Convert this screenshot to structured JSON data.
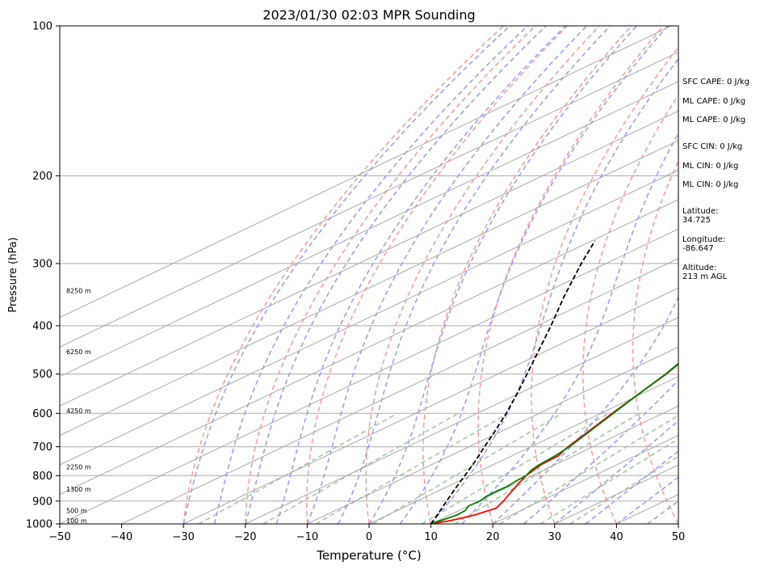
{
  "chart_data": {
    "type": "line",
    "subtype": "skew-T log-P sounding",
    "title": "2023/01/30 02:03 MPR Sounding",
    "xlabel": "Temperature (°C)",
    "ylabel": "Pressure (hPa)",
    "x_range": [
      -50,
      50
    ],
    "y_range": [
      1000,
      100
    ],
    "y_scale": "log",
    "x_ticks": [
      -50,
      -40,
      -30,
      -20,
      -10,
      0,
      10,
      20,
      30,
      40,
      50
    ],
    "x_tick_labels": [
      "−50",
      "−40",
      "−30",
      "−20",
      "−10",
      "0",
      "10",
      "20",
      "30",
      "40",
      "50"
    ],
    "y_ticks": [
      1000,
      900,
      800,
      700,
      600,
      500,
      400,
      300,
      200,
      100
    ],
    "y_tick_labels": [
      "1000",
      "900",
      "800",
      "700",
      "600",
      "500",
      "400",
      "300",
      "200",
      "100"
    ],
    "grid": true,
    "colors": {
      "temperature": "#ff0000",
      "dewpoint": "#008000",
      "parcel": "#000000",
      "isotherms": "#aaaaaa",
      "dry_adiabats": "#ff9999",
      "moist_adiabats": "#9999ff",
      "mixing_ratio": "#99cc99",
      "height_labels": "#000000"
    },
    "series": [
      {
        "name": "Temperature",
        "style": "solid",
        "points": [
          [
            1000,
            10.0
          ],
          [
            985,
            12.0
          ],
          [
            960,
            14.0
          ],
          [
            930,
            15.2
          ],
          [
            900,
            14.0
          ],
          [
            870,
            12.5
          ],
          [
            840,
            11.0
          ],
          [
            800,
            9.0
          ],
          [
            760,
            7.7
          ],
          [
            730,
            7.5
          ],
          [
            700,
            6.0
          ],
          [
            650,
            4.0
          ],
          [
            600,
            1.8
          ],
          [
            550,
            -0.4
          ],
          [
            500,
            -2.8
          ],
          [
            460,
            -5.3
          ],
          [
            430,
            -7.5
          ],
          [
            400,
            -10.4
          ],
          [
            370,
            -13.2
          ],
          [
            350,
            -15.2
          ],
          [
            330,
            -17.5
          ],
          [
            300,
            -21.5
          ],
          [
            280,
            -24.6
          ],
          [
            270,
            -26.8
          ]
        ]
      },
      {
        "name": "Dewpoint",
        "style": "solid",
        "points": [
          [
            1000,
            9.8
          ],
          [
            980,
            10.6
          ],
          [
            960,
            11.2
          ],
          [
            940,
            11.0
          ],
          [
            920,
            10.0
          ],
          [
            900,
            10.2
          ],
          [
            880,
            9.6
          ],
          [
            860,
            9.5
          ],
          [
            840,
            9.6
          ],
          [
            820,
            9.2
          ],
          [
            800,
            9.0
          ],
          [
            780,
            8.0
          ],
          [
            760,
            7.4
          ],
          [
            730,
            7.0
          ],
          [
            700,
            6.2
          ],
          [
            650,
            4.2
          ],
          [
            600,
            2.0
          ],
          [
            550,
            -0.4
          ],
          [
            500,
            -2.9
          ],
          [
            460,
            -5.5
          ],
          [
            430,
            -7.6
          ],
          [
            410,
            -10.5
          ],
          [
            390,
            -13.0
          ],
          [
            370,
            -15.5
          ],
          [
            355,
            -17.0
          ],
          [
            345,
            -19.0
          ],
          [
            330,
            -21.0
          ],
          [
            320,
            -22.7
          ],
          [
            310,
            -25.0
          ],
          [
            300,
            -27.5
          ],
          [
            290,
            -29.9
          ],
          [
            280,
            -32.4
          ],
          [
            275,
            -33.0
          ],
          [
            270,
            -31.4
          ]
        ]
      },
      {
        "name": "Parcel",
        "style": "dashed",
        "points": [
          [
            1000,
            10.0
          ],
          [
            950,
            7.5
          ],
          [
            900,
            4.8
          ],
          [
            850,
            2.0
          ],
          [
            800,
            -0.9
          ],
          [
            750,
            -4.0
          ],
          [
            700,
            -7.5
          ],
          [
            650,
            -11.2
          ],
          [
            600,
            -15.3
          ],
          [
            550,
            -20.0
          ],
          [
            500,
            -25.3
          ],
          [
            450,
            -31.2
          ],
          [
            400,
            -37.8
          ],
          [
            350,
            -45.5
          ],
          [
            300,
            -54.0
          ],
          [
            270,
            -59.5
          ]
        ]
      }
    ],
    "height_labels": [
      {
        "pressure": 1000,
        "label": "100 m"
      },
      {
        "pressure": 955,
        "label": "500 m"
      },
      {
        "pressure": 865,
        "label": "1300 m"
      },
      {
        "pressure": 780,
        "label": "2250 m"
      },
      {
        "pressure": 602,
        "label": "4250 m"
      },
      {
        "pressure": 458,
        "label": "6250 m"
      },
      {
        "pressure": 345,
        "label": "8250 m"
      }
    ]
  },
  "stats": {
    "sfc_cape": "SFC CAPE: 0 J/kg",
    "ml_cape": "ML CAPE: 0 J/kg",
    "ml_cape_2": "ML CAPE: 0 J/kg",
    "sfc_cin": "SFC CIN: 0 J/kg",
    "ml_cin": "ML CIN: 0 J/kg",
    "ml_cin_2": "ML CIN: 0 J/kg",
    "latitude_label": "Latitude:",
    "latitude_value": "34.725",
    "longitude_label": "Longitude:",
    "longitude_value": "-86.647",
    "altitude_label": "Altitude:",
    "altitude_value": "213 m AGL"
  }
}
